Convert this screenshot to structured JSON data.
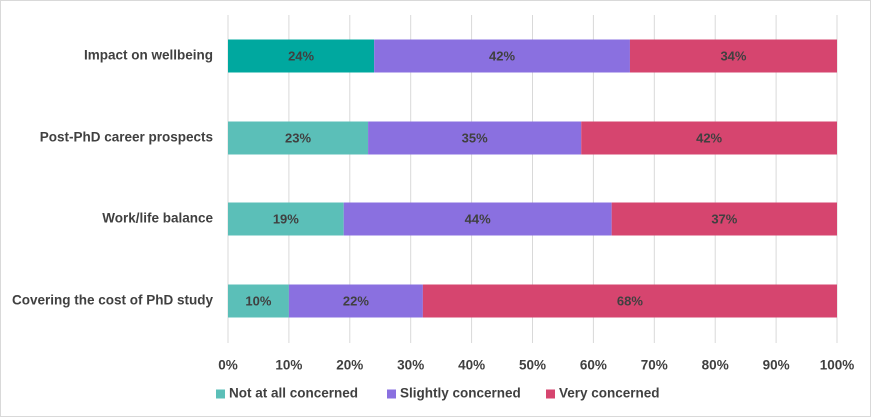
{
  "chart_data": {
    "type": "bar",
    "orientation": "horizontal",
    "stacked": true,
    "percent_stacked": true,
    "categories": [
      "Impact on wellbeing",
      "Post-PhD career prospects",
      "Work/life balance",
      "Covering the cost of PhD study"
    ],
    "series": [
      {
        "name": "Not at all concerned",
        "values": [
          24,
          23,
          19,
          10
        ],
        "labels": [
          "24%",
          "23%",
          "19%",
          "10%"
        ],
        "color": "#5bbfb8",
        "highlight_color": "#00a89f"
      },
      {
        "name": "Slightly concerned",
        "values": [
          42,
          35,
          44,
          22
        ],
        "labels": [
          "42%",
          "35%",
          "44%",
          "22%"
        ],
        "color": "#8a70e0"
      },
      {
        "name": "Very concerned",
        "values": [
          34,
          42,
          37,
          68
        ],
        "labels": [
          "34%",
          "42%",
          "37%",
          "68%"
        ],
        "color": "#d6456f"
      }
    ],
    "highlight_category_index": 0,
    "xlim": [
      0,
      100
    ],
    "xticks": [
      "0%",
      "10%",
      "20%",
      "30%",
      "40%",
      "50%",
      "60%",
      "70%",
      "80%",
      "90%",
      "100%"
    ],
    "grid": true,
    "legend_position": "bottom"
  }
}
